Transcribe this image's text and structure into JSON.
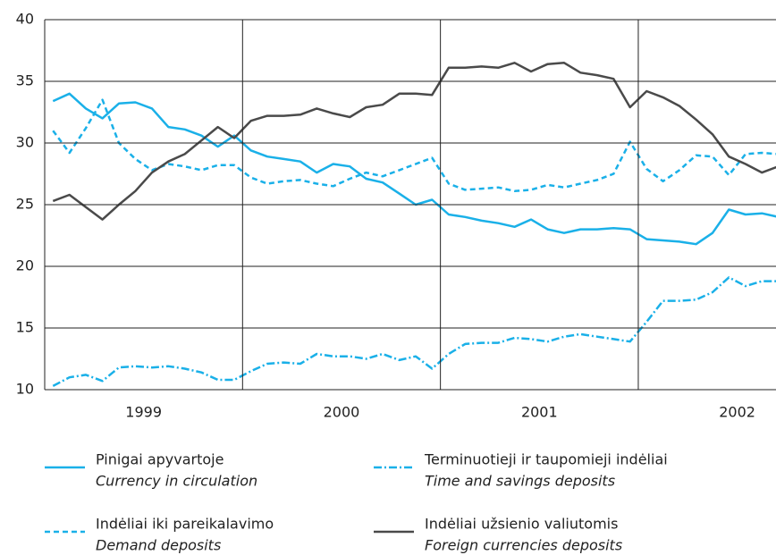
{
  "chart_data": {
    "type": "line",
    "x": [
      1999.042,
      1999.125,
      1999.208,
      1999.292,
      1999.375,
      1999.458,
      1999.542,
      1999.625,
      1999.708,
      1999.792,
      1999.875,
      1999.958,
      2000.042,
      2000.125,
      2000.208,
      2000.292,
      2000.375,
      2000.458,
      2000.542,
      2000.625,
      2000.708,
      2000.792,
      2000.875,
      2000.958,
      2001.042,
      2001.125,
      2001.208,
      2001.292,
      2001.375,
      2001.458,
      2001.542,
      2001.625,
      2001.708,
      2001.792,
      2001.875,
      2001.958,
      2002.042,
      2002.125,
      2002.208,
      2002.292,
      2002.375,
      2002.458,
      2002.542,
      2002.625,
      2002.708
    ],
    "series": [
      {
        "name": "Pinigai apyvartoje",
        "name_en": "Currency in circulation",
        "color": "#1ab0e8",
        "dash": "solid",
        "values": [
          33.4,
          34.0,
          32.8,
          32.0,
          33.2,
          33.3,
          32.8,
          31.3,
          31.1,
          30.6,
          29.7,
          30.6,
          29.4,
          28.9,
          28.7,
          28.5,
          27.6,
          28.3,
          28.1,
          27.1,
          26.8,
          25.9,
          25.0,
          25.4,
          24.2,
          24.0,
          23.7,
          23.5,
          23.2,
          23.8,
          23.0,
          22.7,
          23.0,
          23.0,
          23.1,
          23.0,
          22.2,
          22.1,
          22.0,
          21.8,
          22.7,
          24.6,
          24.2,
          24.3,
          24.0
        ]
      },
      {
        "name": "Indėliai iki pareikalavimo",
        "name_en": "Demand deposits",
        "color": "#1ab0e8",
        "dash": "dashed",
        "values": [
          31.0,
          29.2,
          31.2,
          33.5,
          30.0,
          28.7,
          27.8,
          28.3,
          28.1,
          27.8,
          28.2,
          28.2,
          27.2,
          26.7,
          26.9,
          27.0,
          26.7,
          26.5,
          27.1,
          27.6,
          27.3,
          27.8,
          28.3,
          28.8,
          26.7,
          26.2,
          26.3,
          26.4,
          26.1,
          26.2,
          26.6,
          26.4,
          26.7,
          27.0,
          27.5,
          30.1,
          27.9,
          26.9,
          27.8,
          29.0,
          28.9,
          27.4,
          29.1,
          29.2,
          29.1
        ]
      },
      {
        "name": "Terminuotieji ir taupomieji indėliai",
        "name_en": "Time and savings deposits",
        "color": "#1ab0e8",
        "dash": "dashdot",
        "values": [
          10.3,
          11.0,
          11.2,
          10.7,
          11.8,
          11.9,
          11.8,
          11.9,
          11.7,
          11.4,
          10.8,
          10.8,
          11.5,
          12.1,
          12.2,
          12.1,
          12.9,
          12.7,
          12.7,
          12.5,
          12.9,
          12.4,
          12.7,
          11.7,
          12.9,
          13.7,
          13.8,
          13.8,
          14.2,
          14.1,
          13.9,
          14.3,
          14.5,
          14.3,
          14.1,
          13.9,
          15.5,
          17.2,
          17.2,
          17.3,
          17.9,
          19.1,
          18.4,
          18.8,
          18.8
        ]
      },
      {
        "name": "Indėliai užsienio valiutomis",
        "name_en": "Foreign currencies deposits",
        "color": "#4a4a4a",
        "dash": "solid",
        "values": [
          25.3,
          25.8,
          24.8,
          23.8,
          25.0,
          26.1,
          27.6,
          28.5,
          29.1,
          30.2,
          31.3,
          30.4,
          31.8,
          32.2,
          32.2,
          32.3,
          32.8,
          32.4,
          32.1,
          32.9,
          33.1,
          34.0,
          34.0,
          33.9,
          36.1,
          36.1,
          36.2,
          36.1,
          36.5,
          35.8,
          36.4,
          36.5,
          35.7,
          35.5,
          35.2,
          32.9,
          34.2,
          33.7,
          33.0,
          31.9,
          30.7,
          28.9,
          28.3,
          27.6,
          28.1
        ]
      }
    ],
    "xlim": [
      1999,
      2002.696
    ],
    "xticks": [
      {
        "value": 1999.5,
        "label": "1999"
      },
      {
        "value": 2000.5,
        "label": "2000"
      },
      {
        "value": 2001.5,
        "label": "2001"
      },
      {
        "value": 2002.5,
        "label": "2002"
      }
    ],
    "xgrid": [
      2000,
      2001,
      2002
    ],
    "ylim": [
      10,
      40
    ],
    "yticks": [
      10,
      15,
      20,
      25,
      30,
      35,
      40
    ],
    "grid": true
  }
}
